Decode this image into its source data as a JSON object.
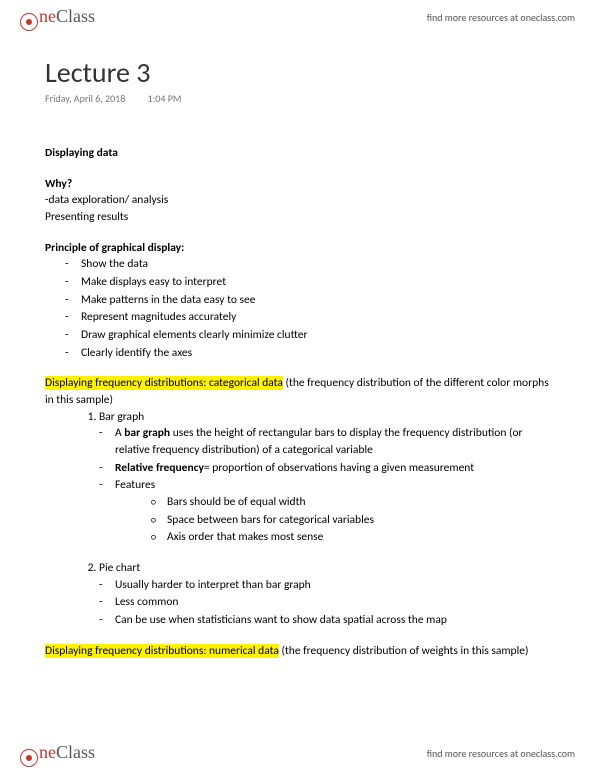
{
  "branding": {
    "logo_one": "ne",
    "logo_class": "Class",
    "resources": "find more resources at oneclass.com"
  },
  "doc": {
    "title": "Lecture 3",
    "date": "Friday, April 6, 2018",
    "time": "1:04 PM"
  },
  "body": {
    "heading1": "Displaying data",
    "why": "Why?",
    "why_line1": "-data exploration/ analysis",
    "why_line2": "Presenting results",
    "principle_heading": "Principle of graphical display:",
    "principles": [
      "Show the data",
      "Make displays easy to interpret",
      "Make patterns in the data easy to see",
      "Represent magnitudes accurately",
      "Draw graphical elements clearly minimize clutter",
      "Clearly identify the axes"
    ],
    "cat_hl": "Displaying frequency distributions:  categorical data",
    "cat_tail": " (the frequency distribution of the different color morphs in this sample)",
    "bar_graph_label": "Bar graph",
    "bar_b1a": "A ",
    "bar_b1b": "bar graph",
    "bar_b1c": " uses the height of rectangular bars to display the frequency distribution (or relative frequency distribution) of a categorical variable",
    "bar_b2a": "Relative frequency",
    "bar_b2b": "= proportion of observations having a given measurement",
    "bar_b3": "Features",
    "bar_features": [
      "Bars should be of equal width",
      "Space between bars for categorical variables",
      "Axis order that makes most sense"
    ],
    "pie_label": "Pie chart",
    "pie_bullets": [
      "Usually harder to interpret than bar graph",
      "Less common",
      "Can be use when statisticians want to show data spatial across the map"
    ],
    "num_hl": "Displaying frequency distributions: numerical data",
    "num_tail": " (the frequency distribution of weights in this sample)"
  },
  "colors": {
    "highlight": "#fff200",
    "logo_red": "#c0392b",
    "logo_gray": "#555555"
  }
}
